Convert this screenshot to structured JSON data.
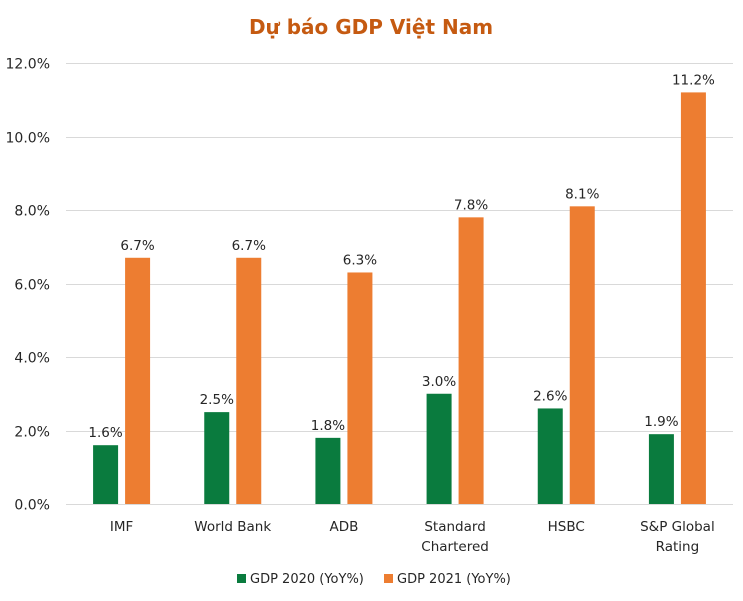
{
  "chart_data": {
    "type": "bar",
    "title": "Dự báo GDP Việt Nam",
    "xlabel": "",
    "ylabel": "",
    "ylim": [
      0,
      12
    ],
    "yticks": [
      0,
      2,
      4,
      6,
      8,
      10,
      12
    ],
    "ytick_labels": [
      "0.0%",
      "2.0%",
      "4.0%",
      "6.0%",
      "8.0%",
      "10.0%",
      "12.0%"
    ],
    "grid": true,
    "legend_position": "bottom",
    "categories": [
      [
        "IMF"
      ],
      [
        "World Bank"
      ],
      [
        "ADB"
      ],
      [
        "Standard",
        "Chartered"
      ],
      [
        "HSBC"
      ],
      [
        "S&P Global",
        "Rating"
      ]
    ],
    "series": [
      {
        "name": "GDP 2020 (YoY%)",
        "color": "#0A7B3E",
        "values": [
          1.6,
          2.5,
          1.8,
          3.0,
          2.6,
          1.9
        ],
        "labels": [
          "1.6%",
          "2.5%",
          "1.8%",
          "3.0%",
          "2.6%",
          "1.9%"
        ]
      },
      {
        "name": "GDP 2021 (YoY%)",
        "color": "#ED7D31",
        "values": [
          6.7,
          6.7,
          6.3,
          7.8,
          8.1,
          11.2
        ],
        "labels": [
          "6.7%",
          "6.7%",
          "6.3%",
          "7.8%",
          "8.1%",
          "11.2%"
        ]
      }
    ],
    "title_color": "#C55A11"
  }
}
